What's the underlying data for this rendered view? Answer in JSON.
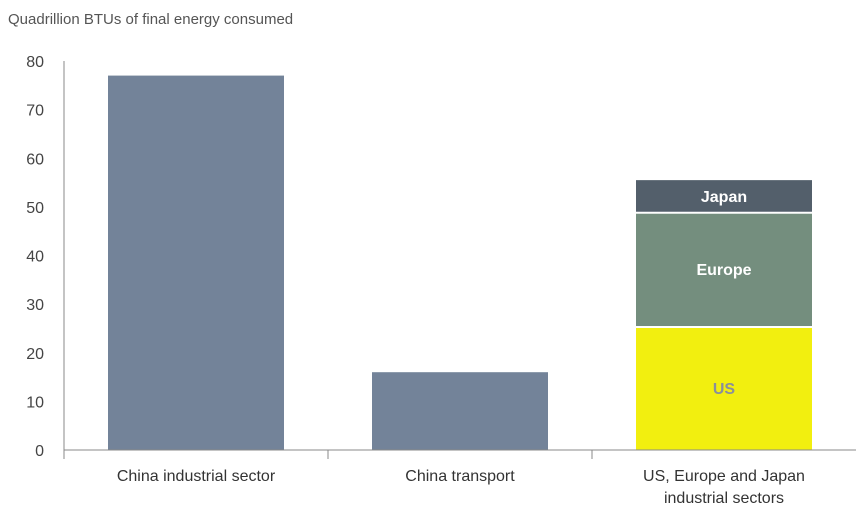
{
  "chart_data": {
    "type": "bar",
    "unit_label": "Quadrillion BTUs of final energy consumed",
    "ylim": [
      0,
      80
    ],
    "yticks": [
      0,
      10,
      20,
      30,
      40,
      50,
      60,
      70,
      80
    ],
    "grid": false,
    "categories": [
      {
        "label_lines": [
          "China industrial sector"
        ],
        "value": 77,
        "color": "#738399"
      },
      {
        "label_lines": [
          "China transport"
        ],
        "value": 16,
        "color": "#738399"
      },
      {
        "label_lines": [
          "US, Europe and Japan",
          "industrial sectors"
        ],
        "stack": [
          {
            "name": "US",
            "value": 25.5,
            "color": "#f2ef0f",
            "label_color": "#8a8f9c"
          },
          {
            "name": "Europe",
            "value": 23.5,
            "color": "#748e7e",
            "label_color": "#ffffff"
          },
          {
            "name": "Japan",
            "value": 6.5,
            "color": "#535f6b",
            "label_color": "#ffffff"
          }
        ]
      }
    ]
  }
}
